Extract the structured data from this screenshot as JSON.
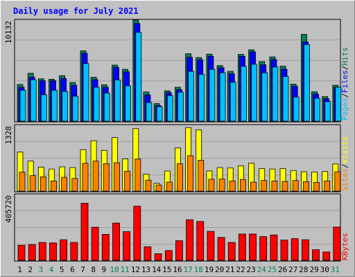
{
  "title": "Daily usage for July 2021",
  "colors": {
    "frame_bg": "#c0c0c0",
    "plot_bg": "#c0c0c0",
    "title": "#0000ff",
    "hits": "#00805c",
    "files": "#0000ff",
    "pages": "#00c0ff",
    "visits": "#ffff00",
    "sites": "#ff8000",
    "kbytes": "#ff0000",
    "day_weekend": "#00805c",
    "day_weekday": "#000000"
  },
  "panels": {
    "top": {
      "max_label": "10132",
      "legend": [
        {
          "text": "Hits",
          "color": "#00805c"
        },
        {
          "text": "/",
          "color": "#000000"
        },
        {
          "text": "Files",
          "color": "#0000ff"
        },
        {
          "text": "/",
          "color": "#000000"
        },
        {
          "text": "Pages",
          "color": "#00c0ff"
        }
      ]
    },
    "middle": {
      "max_label": "1328",
      "legend": [
        {
          "text": "Visits",
          "color": "#ffff00"
        },
        {
          "text": "/",
          "color": "#000000"
        },
        {
          "text": "Sites",
          "color": "#ff8000"
        }
      ]
    },
    "bottom": {
      "max_label": "405720",
      "legend": [
        {
          "text": "KBytes",
          "color": "#ff0000"
        }
      ]
    }
  },
  "chart_data": {
    "type": "bar",
    "title": "Daily usage for July 2021",
    "categories": [
      "1",
      "2",
      "3",
      "4",
      "5",
      "6",
      "7",
      "8",
      "9",
      "10",
      "11",
      "12",
      "13",
      "14",
      "15",
      "16",
      "17",
      "18",
      "19",
      "20",
      "21",
      "22",
      "23",
      "24",
      "25",
      "26",
      "27",
      "28",
      "29",
      "30",
      "31"
    ],
    "weekend_days": [
      "3",
      "4",
      "10",
      "11",
      "17",
      "18",
      "24",
      "25",
      "31"
    ],
    "panels": [
      {
        "name": "top",
        "ymax_label": "10132",
        "ylim": [
          0,
          10132
        ],
        "series": [
          {
            "name": "Hits",
            "values": [
              3680,
              4800,
              4250,
              4200,
              4560,
              3880,
              7050,
              4400,
              3640,
              5620,
              5200,
              10132,
              2930,
              1760,
              3050,
              3400,
              6760,
              6380,
              6720,
              5570,
              5000,
              6700,
              7150,
              5970,
              6440,
              5510,
              3710,
              8700,
              2950,
              2460,
              3600
            ]
          },
          {
            "name": "Files",
            "values": [
              3400,
              4400,
              4050,
              4050,
              4280,
              3600,
              6800,
              4170,
              3400,
              5400,
              4950,
              9800,
              2630,
              1570,
              2850,
              3160,
              6400,
              6150,
              6500,
              5360,
              4750,
              6500,
              6950,
              5650,
              6180,
              5210,
              3500,
              7950,
              2720,
              2250,
              3380
            ]
          },
          {
            "name": "Pages",
            "values": [
              3100,
              4150,
              2650,
              3100,
              2980,
              2500,
              5780,
              3400,
              2820,
              4140,
              3550,
              8900,
              1870,
              1450,
              2570,
              2910,
              5000,
              4700,
              5200,
              4850,
              3900,
              5500,
              5700,
              4860,
              5430,
              4480,
              2420,
              7680,
              2300,
              1960,
              3400
            ]
          }
        ]
      },
      {
        "name": "middle",
        "ymax_label": "1328",
        "ylim": [
          0,
          1328
        ],
        "series": [
          {
            "name": "Visits",
            "values": [
              805,
              620,
              495,
              455,
              500,
              485,
              855,
              1040,
              840,
              1105,
              665,
              1290,
              350,
              160,
              415,
              890,
              1310,
              1265,
              415,
              485,
              480,
              520,
              575,
              465,
              455,
              465,
              425,
              400,
              395,
              405,
              560
            ]
          },
          {
            "name": "Sites",
            "values": [
              390,
              320,
              295,
              210,
              285,
              260,
              575,
              620,
              565,
              585,
              410,
              665,
              225,
              125,
              185,
              565,
              730,
              635,
              245,
              250,
              210,
              240,
              185,
              220,
              210,
              200,
              220,
              195,
              180,
              210,
              400
            ]
          }
        ]
      },
      {
        "name": "bottom",
        "ymax_label": "405720",
        "ylim": [
          0,
          405720
        ],
        "series": [
          {
            "name": "KBytes",
            "values": [
              95000,
              100000,
              113000,
              110000,
              130000,
              113000,
              360000,
              209000,
              164000,
              235000,
              181000,
              341000,
              86000,
              42000,
              62000,
              124000,
              256000,
              245000,
              183000,
              145000,
              113000,
              166000,
              166000,
              150000,
              160000,
              128000,
              137000,
              130000,
              67000,
              53000,
              210000
            ]
          }
        ]
      }
    ]
  }
}
